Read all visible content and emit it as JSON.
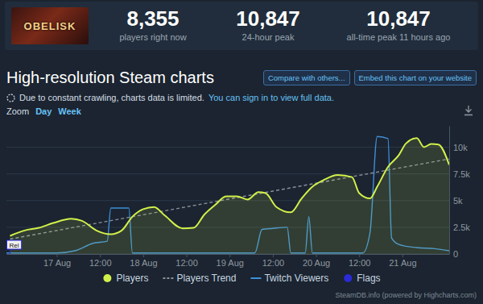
{
  "header": {
    "icon_text": "OBELISK",
    "stats": [
      {
        "value": "8,355",
        "label": "players right now"
      },
      {
        "value": "10,847",
        "label": "24-hour peak"
      },
      {
        "value": "10,847",
        "label": "all-time peak 11 hours ago"
      }
    ]
  },
  "page": {
    "title": "High-resolution Steam charts",
    "buttons": [
      "Compare with others...",
      "Embed this chart on your website"
    ],
    "notice": "Due to constant crawling, charts data is limited.",
    "notice_link": "You can sign in to view full data.",
    "zoom_label": "Zoom",
    "zoom_options": [
      "Day",
      "Week"
    ],
    "credit": "SteamDB.info (powered by Highcharts.com)"
  },
  "chart_data": {
    "type": "line",
    "xlim": [
      -14,
      109
    ],
    "xticks": [
      {
        "value": 0,
        "label": "17 Aug"
      },
      {
        "value": 12,
        "label": "12:00"
      },
      {
        "value": 24,
        "label": "18 Aug"
      },
      {
        "value": 36,
        "label": "12:00"
      },
      {
        "value": 48,
        "label": "19 Aug"
      },
      {
        "value": 60,
        "label": "12:00"
      },
      {
        "value": 72,
        "label": "20 Aug"
      },
      {
        "value": 84,
        "label": "12:00"
      },
      {
        "value": 96,
        "label": "21 Aug"
      }
    ],
    "ylim": [
      0,
      12000
    ],
    "yticks": [
      0,
      {
        "value": 2500,
        "label": "2.5k"
      },
      {
        "value": 5000,
        "label": "5k"
      },
      {
        "value": 7500,
        "label": "7.5k"
      },
      {
        "value": 10000,
        "label": "10k"
      }
    ],
    "grid": true,
    "legend": "bottom",
    "series": [
      {
        "name": "Players",
        "type": "area",
        "color": "#d2f04a",
        "line_style": "solid",
        "x": [
          -13,
          -9,
          -5,
          -1,
          4,
          7,
          11,
          15,
          18,
          21,
          24,
          27,
          30,
          35,
          38,
          41,
          44,
          47,
          50,
          53,
          56,
          58,
          61,
          65,
          68,
          71,
          74,
          78,
          82,
          84,
          87,
          89,
          92,
          95,
          97,
          100,
          102,
          104,
          106,
          109
        ],
        "values": [
          1700,
          2200,
          2450,
          2900,
          3300,
          3100,
          2200,
          1850,
          2200,
          3500,
          4200,
          4400,
          3600,
          2400,
          2450,
          3700,
          4600,
          5400,
          5400,
          5100,
          5800,
          5700,
          4400,
          3900,
          5200,
          6300,
          6900,
          7400,
          7200,
          5700,
          5200,
          6300,
          8150,
          9250,
          10350,
          10847,
          10000,
          10300,
          10250,
          8355
        ]
      },
      {
        "name": "Players Trend",
        "color": "#8a909a",
        "line_style": "dashed",
        "x": [
          -13,
          109
        ],
        "values": [
          1400,
          8900
        ]
      },
      {
        "name": "Twitch Viewers",
        "color": "#3d8fd8",
        "line_style": "solid",
        "x": [
          -14,
          0,
          5,
          10,
          14,
          15,
          20,
          21,
          55,
          57,
          60,
          64,
          65,
          69,
          70,
          71,
          85,
          87,
          89,
          92,
          93,
          95,
          100,
          105,
          109
        ],
        "values": [
          100,
          100,
          300,
          1000,
          1200,
          4300,
          4300,
          100,
          100,
          2300,
          2400,
          2500,
          100,
          100,
          3500,
          100,
          100,
          2000,
          11000,
          10800,
          1500,
          900,
          600,
          500,
          300
        ]
      },
      {
        "name": "Flags",
        "type": "flags",
        "color": "#2b2bd9",
        "x": [
          -13
        ],
        "labels": [
          "Rel"
        ]
      }
    ]
  }
}
